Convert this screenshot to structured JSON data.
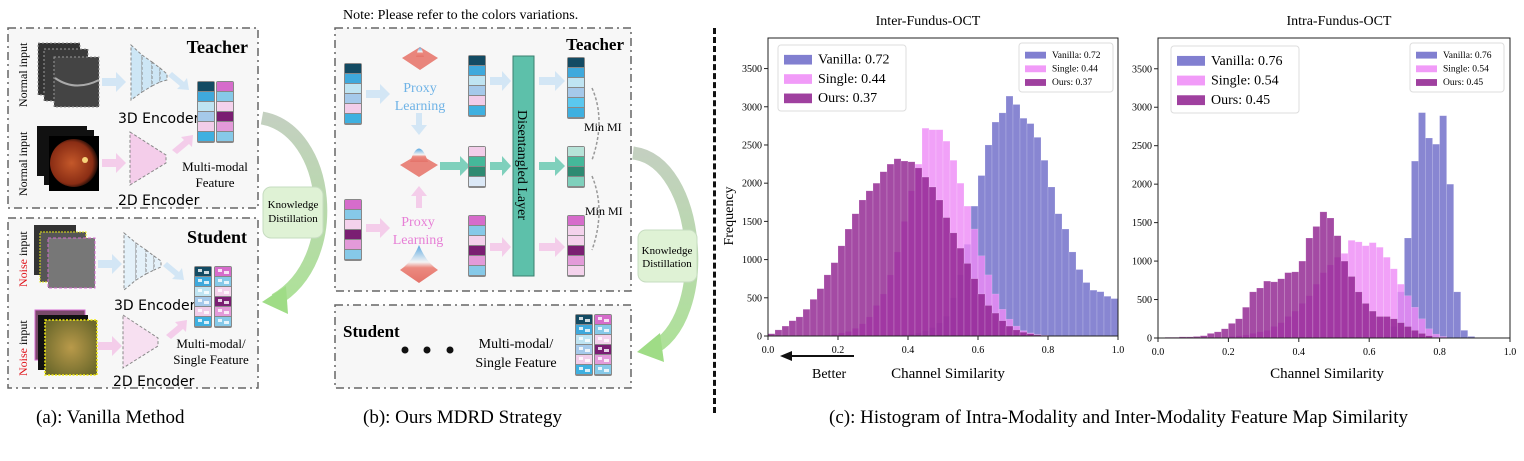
{
  "note": "Note: Please refer to the colors variations.",
  "panel_a": {
    "caption": "(a): Vanilla Method",
    "teacher": {
      "title": "Teacher",
      "input_label_1": "Normal input",
      "input_label_2": "Normal input",
      "encoder_3d": "3D Encoder",
      "encoder_2d": "2D Encoder",
      "feature_line1": "Multi-modal",
      "feature_line2": "Feature"
    },
    "student": {
      "title": "Student",
      "noise_word": "Noise",
      "input_suffix": " input",
      "encoder_3d": "3D Encoder",
      "encoder_2d": "2D Encoder",
      "feature_line1": "Multi-modal/",
      "feature_line2": "Single Feature"
    },
    "kd_line1": "Knowledge",
    "kd_line2": "Distillation"
  },
  "panel_b": {
    "caption": "(b): Ours MDRD Strategy",
    "teacher_title": "Teacher",
    "proxy_line1": "Proxy",
    "proxy_line2": "Learning",
    "disentangled": "Disentangled  Layer",
    "min_mi": "Min MI",
    "kd_line1": "Knowledge",
    "kd_line2": "Distillation",
    "student_title": "Student",
    "student_feature_line1": "Multi-modal/",
    "student_feature_line2": "Single Feature"
  },
  "colors": {
    "oct_column": [
      "#134b63",
      "#3fa9dc",
      "#bfe4f2",
      "#a5c9ea",
      "#f2cde9",
      "#3fb0e0"
    ],
    "fundus_column": [
      "#d66ccb",
      "#86c9e8",
      "#f4d2ec",
      "#7a1e72",
      "#e39ad9",
      "#86c9e8"
    ],
    "shared_column": [
      "#f2cde9",
      "#45b89a",
      "#2e8a72",
      "#dbe8f6"
    ],
    "shared_out_column": [
      "#b6e3d8",
      "#45b89a",
      "#2e8a72",
      "#7fd0bc"
    ],
    "oct_out_column": [
      "#134b63",
      "#3fa9dc",
      "#bfe4f2",
      "#a5c9ea",
      "#5bc8ef",
      "#3fb0e0"
    ],
    "fundus_out_column": [
      "#d66ccb",
      "#f4d2ec",
      "#f4d2ec",
      "#7a1e72",
      "#e39ad9",
      "#f4d2ec"
    ],
    "proxy_blue": "#6fb3e6",
    "proxy_pink": "#e77fd6",
    "disentangled_layer": "#5dc0aa",
    "kd_box": "#dff2d5",
    "noise_red": "#e0141b"
  },
  "panel_c": {
    "caption": "(c): Histogram of Intra-Modality and Inter-Modality Feature Map Similarity",
    "better_label": "Better"
  },
  "chart_data": [
    {
      "type": "histogram",
      "title": "Inter-Fundus-OCT",
      "xlabel": "Channel Similarity",
      "ylabel": "Frequency",
      "xlim": [
        0,
        1.0
      ],
      "ylim": [
        0,
        3900
      ],
      "xticks": [
        "0.0",
        "0.2",
        "0.4",
        "0.6",
        "0.8",
        "1.0"
      ],
      "yticks": [
        "0",
        "500",
        "1000",
        "1500",
        "2000",
        "2500",
        "3000",
        "3500"
      ],
      "bin_width": 0.02,
      "legend_placement": [
        "upper-left",
        "upper-right"
      ],
      "series": [
        {
          "name": "Vanilla: 0.72",
          "color": "#6b68c8",
          "values": [
            0,
            0,
            0,
            0,
            0,
            0,
            0,
            0,
            0,
            0,
            0,
            0,
            0,
            0,
            0,
            5,
            8,
            10,
            15,
            20,
            25,
            40,
            70,
            110,
            170,
            260,
            500,
            800,
            1200,
            1700,
            2100,
            2500,
            2800,
            2920,
            3140,
            3030,
            2850,
            2780,
            2600,
            2300,
            1950,
            1600,
            1400,
            1100,
            870,
            700,
            600,
            580,
            520,
            490
          ]
        },
        {
          "name": "Single: 0.44",
          "color": "#ee8af7",
          "values": [
            0,
            0,
            0,
            0,
            0,
            0,
            0,
            0,
            10,
            20,
            40,
            60,
            100,
            160,
            250,
            400,
            550,
            800,
            1100,
            1500,
            1900,
            2250,
            2720,
            2700,
            2700,
            2550,
            2300,
            2000,
            1700,
            1400,
            1050,
            800,
            550,
            350,
            220,
            130,
            70,
            40,
            20,
            10,
            0,
            0,
            0,
            0,
            0,
            0,
            0,
            0,
            0,
            0
          ]
        },
        {
          "name": "Ours: 0.37",
          "color": "#8e1f8e",
          "values": [
            30,
            80,
            130,
            200,
            250,
            350,
            480,
            620,
            800,
            960,
            1180,
            1400,
            1600,
            1780,
            1900,
            2000,
            2150,
            2250,
            2320,
            2290,
            2280,
            2200,
            2080,
            1950,
            1780,
            1550,
            1350,
            1150,
            950,
            750,
            550,
            400,
            300,
            200,
            130,
            80,
            50,
            30,
            15,
            8,
            0,
            0,
            0,
            0,
            0,
            0,
            0,
            0,
            0,
            0
          ]
        }
      ]
    },
    {
      "type": "histogram",
      "title": "Intra-Fundus-OCT",
      "xlabel": "Channel Similarity",
      "ylabel": "",
      "xlim": [
        0,
        1.0
      ],
      "ylim": [
        0,
        3900
      ],
      "xticks": [
        "0.0",
        "0.2",
        "0.4",
        "0.6",
        "0.8",
        "1.0"
      ],
      "yticks": [
        "0",
        "500",
        "1000",
        "1500",
        "2000",
        "2500",
        "3000",
        "3500"
      ],
      "bin_width": 0.02,
      "legend_placement": [
        "upper-left",
        "upper-right"
      ],
      "series": [
        {
          "name": "Vanilla: 0.76",
          "color": "#6b68c8",
          "values": [
            0,
            0,
            0,
            0,
            0,
            0,
            0,
            0,
            0,
            0,
            0,
            0,
            0,
            0,
            0,
            0,
            0,
            0,
            0,
            0,
            0,
            0,
            0,
            0,
            0,
            0,
            0,
            0,
            0,
            0,
            0,
            0,
            20,
            150,
            600,
            1300,
            2300,
            2930,
            2600,
            2520,
            2890,
            2000,
            600,
            100,
            20,
            0,
            0,
            0,
            0,
            0
          ]
        },
        {
          "name": "Single: 0.54",
          "color": "#ee8af7",
          "values": [
            0,
            0,
            0,
            0,
            0,
            0,
            0,
            0,
            0,
            0,
            20,
            30,
            40,
            60,
            80,
            100,
            150,
            200,
            280,
            350,
            450,
            550,
            700,
            850,
            950,
            1050,
            1100,
            1270,
            1250,
            1200,
            1240,
            1180,
            1050,
            900,
            700,
            550,
            400,
            250,
            120,
            50,
            20,
            0,
            0,
            0,
            0,
            0,
            0,
            0,
            0,
            0
          ]
        },
        {
          "name": "Ours: 0.45",
          "color": "#8e1f8e",
          "values": [
            5,
            10,
            10,
            15,
            15,
            20,
            30,
            60,
            80,
            120,
            190,
            250,
            400,
            600,
            650,
            740,
            730,
            770,
            850,
            860,
            1000,
            1300,
            1450,
            1640,
            1560,
            1330,
            1000,
            800,
            600,
            450,
            350,
            280,
            280,
            250,
            200,
            150,
            100,
            60,
            30,
            10,
            0,
            0,
            0,
            0,
            0,
            0,
            0,
            0,
            0,
            0
          ]
        }
      ]
    }
  ]
}
